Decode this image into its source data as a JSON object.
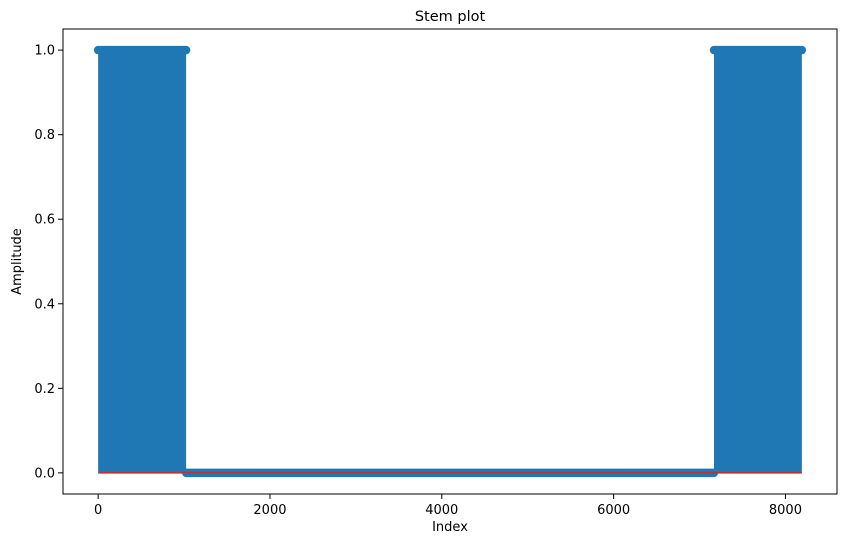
{
  "chart_data": {
    "type": "stem",
    "title": "Stem plot",
    "xlabel": "Index",
    "ylabel": "Amplitude",
    "xlim": [
      -409,
      8600
    ],
    "ylim": [
      -0.05,
      1.05
    ],
    "x_ticks": [
      0,
      2000,
      4000,
      6000,
      8000
    ],
    "x_tick_labels": [
      "0",
      "2000",
      "4000",
      "6000",
      "8000"
    ],
    "y_ticks": [
      0.0,
      0.2,
      0.4,
      0.6,
      0.8,
      1.0
    ],
    "y_tick_labels": [
      "0.0",
      "0.2",
      "0.4",
      "0.6",
      "0.8",
      "1.0"
    ],
    "grid": false,
    "legend": "none",
    "n_points": 8192,
    "x_range": [
      0,
      8191
    ],
    "segments": [
      {
        "x_start": 0,
        "x_end": 1024,
        "value": 1.0
      },
      {
        "x_start": 1025,
        "x_end": 7167,
        "value": 0.0
      },
      {
        "x_start": 7168,
        "x_end": 8191,
        "value": 1.0
      }
    ],
    "colors": {
      "stem": "#1f77b4",
      "marker": "#1f77b4",
      "baseline": "#d62728"
    }
  }
}
